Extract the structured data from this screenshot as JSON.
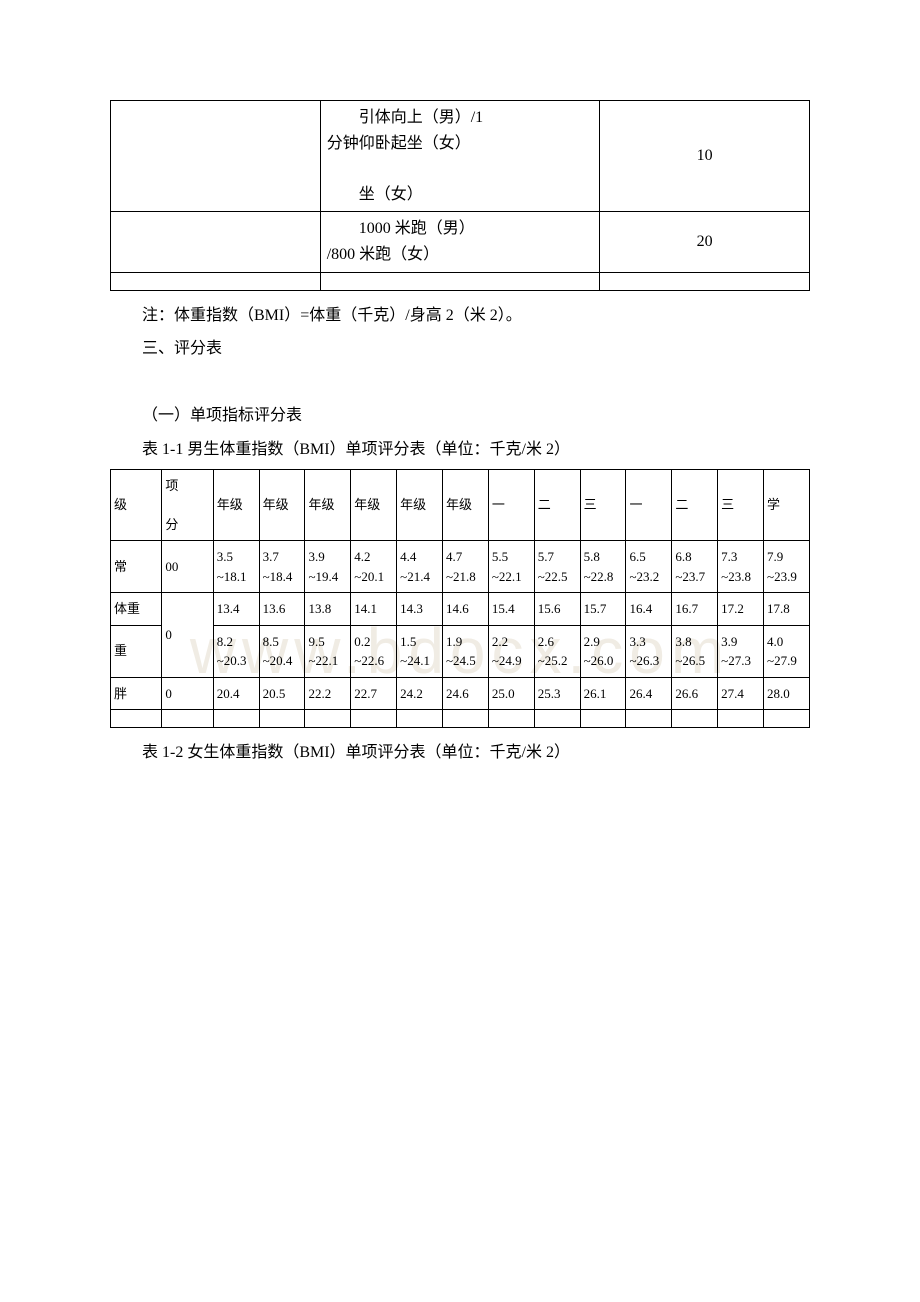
{
  "watermark": "www.bdocx.com",
  "top_table": {
    "rows": [
      {
        "c1": "",
        "c2_line1": "　　引体向上（男）/1",
        "c2_line2": "分钟仰卧起坐（女）",
        "c2_line3": "",
        "c2_line4": "　　坐（女）",
        "c3": "10"
      },
      {
        "c1": "",
        "c2_line1": "　　1000 米跑（男）",
        "c2_line2": "/800 米跑（女）",
        "c3": "20"
      }
    ]
  },
  "note": "注：体重指数（BMI）=体重（千克）/身高 2（米 2）。",
  "section_heading": "三、评分表",
  "sub_heading": "（一）单项指标评分表",
  "table11_caption": "表 1-1 男生体重指数（BMI）单项评分表（单位：千克/米 2）",
  "table11": {
    "header": [
      "级",
      "项\n\n分",
      "年级",
      "年级",
      "年级",
      "年级",
      "年级",
      "年级",
      "一",
      "二",
      "三",
      "一",
      "二",
      "三",
      "学"
    ],
    "rows": [
      {
        "label": "常",
        "score": "00",
        "vals": [
          "3.5~18.1",
          "3.7~18.4",
          "3.9~19.4",
          "4.2~20.1",
          "4.4~21.4",
          "4.7~21.8",
          "5.5~22.1",
          "5.7~22.5",
          "5.8~22.8",
          "6.5~23.2",
          "6.8~23.7",
          "7.3~23.8",
          "7.9~23.9"
        ]
      },
      {
        "label": "体重",
        "score_rowspan": true,
        "score": "0",
        "vals": [
          "13.4",
          "13.6",
          "13.8",
          "14.1",
          "14.3",
          "14.6",
          "15.4",
          "15.6",
          "15.7",
          "16.4",
          "16.7",
          "17.2",
          "17.8"
        ]
      },
      {
        "label": "重",
        "vals": [
          "8.2~20.3",
          "8.5~20.4",
          "9.5~22.1",
          "0.2~22.6",
          "1.5~24.1",
          "1.9~24.5",
          "2.2~24.9",
          "2.6~25.2",
          "2.9~26.0",
          "3.3~26.3",
          "3.8~26.5",
          "3.9~27.3",
          "4.0~27.9"
        ]
      },
      {
        "label": "胖",
        "score": "0",
        "vals": [
          "20.4",
          "20.5",
          "22.2",
          "22.7",
          "24.2",
          "24.6",
          "25.0",
          "25.3",
          "26.1",
          "26.4",
          "26.6",
          "27.4",
          "28.0"
        ]
      }
    ]
  },
  "table12_caption": "表 1-2 女生体重指数（BMI）单项评分表（单位：千克/米 2）"
}
